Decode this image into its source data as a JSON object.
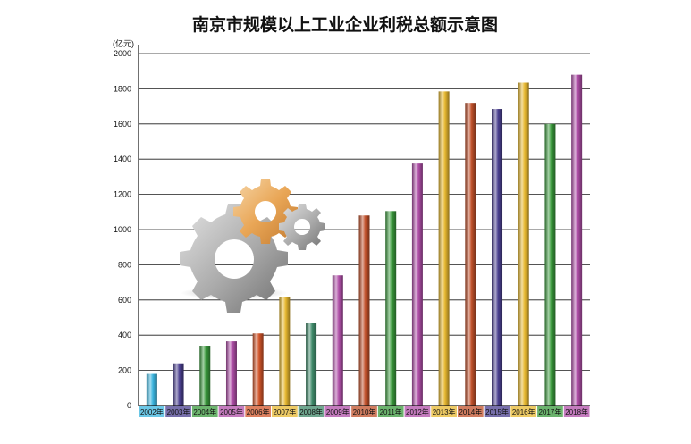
{
  "chart_data": {
    "type": "bar",
    "title": "南京市规模以上工业企业利税总额示意图",
    "unit_label": "(亿元)",
    "ylim": [
      0,
      2000
    ],
    "yticks": [
      0,
      200,
      400,
      600,
      800,
      1000,
      1200,
      1400,
      1600,
      1800,
      2000
    ],
    "grid": true,
    "categories": [
      "2002年",
      "2003年",
      "2004年",
      "2005年",
      "2006年",
      "2007年",
      "2008年",
      "2009年",
      "2010年",
      "2011年",
      "2012年",
      "2013年",
      "2014年",
      "2015年",
      "2016年",
      "2017年",
      "2018年"
    ],
    "values": [
      180,
      240,
      340,
      365,
      410,
      615,
      470,
      740,
      1080,
      1105,
      1375,
      1785,
      1720,
      1685,
      1835,
      1600,
      1880
    ],
    "colors": [
      "#3ab4de",
      "#4a3f8f",
      "#3a9a3c",
      "#b04fa8",
      "#d2552a",
      "#e7b830",
      "#3f8a6a",
      "#b04fa8",
      "#c0502a",
      "#3a9a3c",
      "#b04fa8",
      "#e7b830",
      "#c0502a",
      "#4a3f8f",
      "#e7b830",
      "#3a9a3c",
      "#b04fa8"
    ],
    "decoration": "gear-icons"
  }
}
